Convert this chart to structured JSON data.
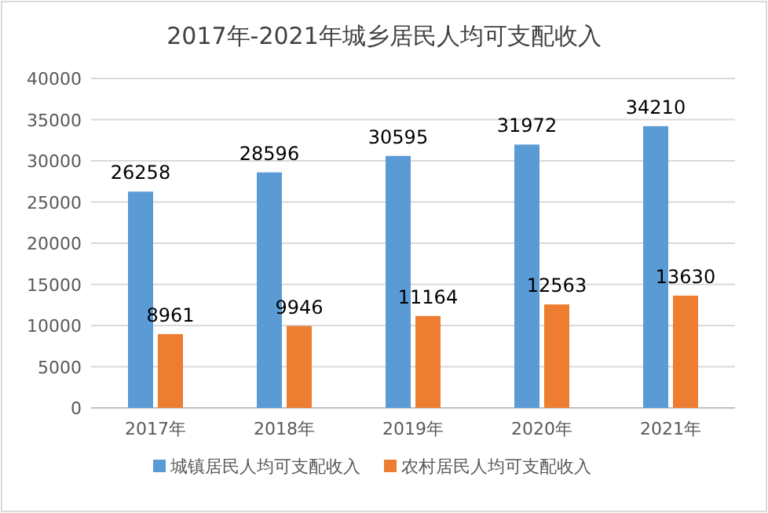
{
  "chart_data": {
    "type": "bar",
    "title": "2017年-2021年城乡居民人均可支配收入",
    "categories": [
      "2017年",
      "2018年",
      "2019年",
      "2020年",
      "2021年"
    ],
    "series": [
      {
        "name": "城镇居民人均可支配收入",
        "color": "#5b9bd5",
        "values": [
          26258,
          28596,
          30595,
          31972,
          34210
        ]
      },
      {
        "name": "农村居民人均可支配收入",
        "color": "#ed7d31",
        "values": [
          8961,
          9946,
          11164,
          12563,
          13630
        ]
      }
    ],
    "ylim": [
      0,
      40000
    ],
    "yticks": [
      0,
      5000,
      10000,
      15000,
      20000,
      25000,
      30000,
      35000,
      40000
    ],
    "grid": "y",
    "legend": "bottom",
    "data_labels": true
  }
}
